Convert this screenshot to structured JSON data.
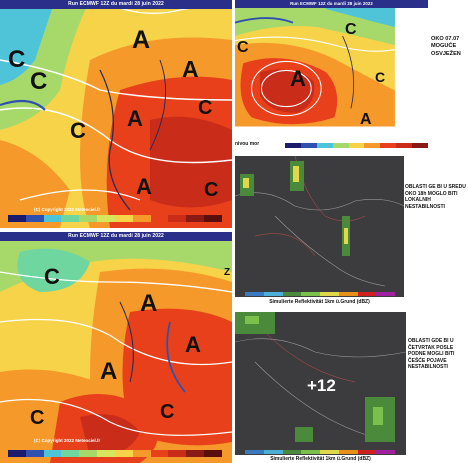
{
  "panels": {
    "top_left": {
      "title": "Run ECMWF 12Z du mardi 28 juin 2022",
      "copyright": "(C) Copyright 2022 Meteociel.fr",
      "pressure_labels": [
        "A",
        "A",
        "A",
        "A",
        "C",
        "C",
        "C",
        "C",
        "C"
      ]
    },
    "top_right": {
      "title": "Run ECMWF 12Z du mardi 28 juin 2022",
      "footer_label": "nivou mor",
      "side_text": [
        "OKO 07.07",
        "MOGUĆE",
        "OSVJEŽEN"
      ],
      "pressure_labels": [
        "C",
        "C",
        "C",
        "A",
        "A"
      ]
    },
    "mid_right": {
      "side_text": [
        "OBLASTI GE BI U SREDU",
        "OKO 18h MOGLO BITI",
        "LOKALNIH",
        "NESTABILNOSTI"
      ],
      "footer": "Simulierte Reflektivität 1km ü.Grund (dBZ)"
    },
    "bottom_left": {
      "title": "Run ECMWF 12Z du mardi 28 juin 2022",
      "copyright": "(C) Copyright 2022 Meteociel.fr",
      "pressure_labels": [
        "C",
        "A",
        "A",
        "A",
        "C",
        "C",
        "Z"
      ]
    },
    "bottom_right": {
      "side_text": [
        "OBLASTI GDE BI U",
        "ČETVRTAK POSLE",
        "PODNE MOGLI BITI",
        "ČEŠĆE POJAVE",
        "NESTABILNOSTI"
      ],
      "overlay": "+12",
      "footer": "Simulierte Reflektivität 1km ü.Grund (dBZ)"
    }
  },
  "colors": {
    "title_bar": "#2a2f8a",
    "hot": "#e8401a",
    "warm": "#f59a2a",
    "mild": "#f7d34a",
    "cool": "#a7d86a",
    "cold": "#4fc3d8",
    "radar_bg": "#3c3c3e"
  }
}
